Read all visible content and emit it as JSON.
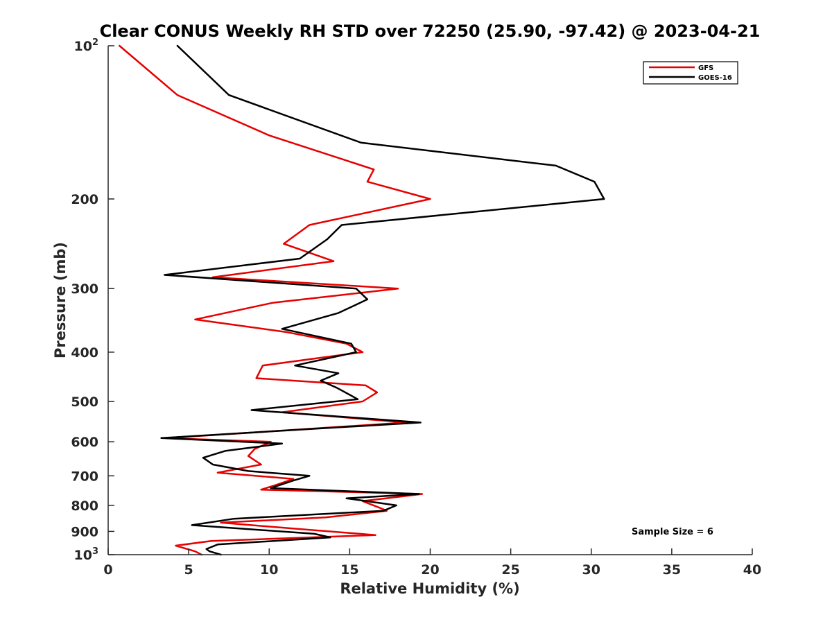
{
  "chart_data": {
    "type": "line",
    "title": "Clear CONUS Weekly RH STD over 72250 (25.90, -97.42) @ 2023-04-21",
    "xlabel": "Relative Humidity (%)",
    "ylabel": "Pressure (mb)",
    "xlim": [
      0,
      40
    ],
    "ylim": [
      100,
      1000
    ],
    "y_scale": "log",
    "y_reversed": true,
    "grid": false,
    "legend_position": "top-right",
    "x_ticks": [
      "0",
      "5",
      "10",
      "15",
      "20",
      "25",
      "30",
      "35",
      "40"
    ],
    "y_ticks": [
      {
        "value": 100,
        "base": "10",
        "exp": "2"
      },
      {
        "value": 200,
        "label": "200"
      },
      {
        "value": 300,
        "label": "300"
      },
      {
        "value": 400,
        "label": "400"
      },
      {
        "value": 500,
        "label": "500"
      },
      {
        "value": 600,
        "label": "600"
      },
      {
        "value": 700,
        "label": "700"
      },
      {
        "value": 800,
        "label": "800"
      },
      {
        "value": 900,
        "label": "900"
      },
      {
        "value": 1000,
        "base": "10",
        "exp": "3"
      }
    ],
    "annotation": "Sample Size = 6",
    "series": [
      {
        "name": "GFS",
        "color": "#e60000",
        "points": [
          [
            0.7,
            100
          ],
          [
            4.3,
            125
          ],
          [
            10,
            150
          ],
          [
            16.5,
            175
          ],
          [
            16.1,
            185
          ],
          [
            20,
            200
          ],
          [
            12.5,
            225
          ],
          [
            10.9,
            245
          ],
          [
            14,
            265
          ],
          [
            6.5,
            285
          ],
          [
            18,
            300
          ],
          [
            10.2,
            320
          ],
          [
            5.4,
            345
          ],
          [
            11,
            365
          ],
          [
            14.8,
            385
          ],
          [
            15.8,
            400
          ],
          [
            9.6,
            425
          ],
          [
            9.2,
            450
          ],
          [
            16,
            465
          ],
          [
            16.7,
            480
          ],
          [
            15.8,
            500
          ],
          [
            10.8,
            525
          ],
          [
            18.5,
            550
          ],
          [
            11,
            570
          ],
          [
            3.6,
            590
          ],
          [
            10.1,
            600
          ],
          [
            9.1,
            620
          ],
          [
            8.7,
            640
          ],
          [
            9.5,
            665
          ],
          [
            6.8,
            690
          ],
          [
            11.5,
            710
          ],
          [
            10.4,
            730
          ],
          [
            9.5,
            745
          ],
          [
            19.5,
            760
          ],
          [
            15.8,
            785
          ],
          [
            16.7,
            805
          ],
          [
            17.3,
            820
          ],
          [
            13.5,
            845
          ],
          [
            7,
            865
          ],
          [
            11.8,
            890
          ],
          [
            16.6,
            915
          ],
          [
            6.4,
            940
          ],
          [
            4.2,
            960
          ],
          [
            5.4,
            985
          ],
          [
            5.8,
            1000
          ]
        ]
      },
      {
        "name": "GOES-16",
        "color": "#000000",
        "points": [
          [
            4.3,
            100
          ],
          [
            7.5,
            125
          ],
          [
            15.7,
            155
          ],
          [
            27.8,
            172
          ],
          [
            30.2,
            185
          ],
          [
            30.8,
            200
          ],
          [
            14.5,
            225
          ],
          [
            13.6,
            240
          ],
          [
            11.9,
            262
          ],
          [
            3.5,
            282
          ],
          [
            15.4,
            300
          ],
          [
            16.1,
            315
          ],
          [
            14.3,
            335
          ],
          [
            10.8,
            360
          ],
          [
            15.1,
            385
          ],
          [
            15.4,
            400
          ],
          [
            11.6,
            425
          ],
          [
            14.3,
            440
          ],
          [
            13.2,
            455
          ],
          [
            14.2,
            470
          ],
          [
            15.5,
            495
          ],
          [
            8.9,
            520
          ],
          [
            19.4,
            550
          ],
          [
            13.1,
            565
          ],
          [
            3.3,
            590
          ],
          [
            10.8,
            605
          ],
          [
            7.3,
            625
          ],
          [
            5.9,
            645
          ],
          [
            6.5,
            665
          ],
          [
            8.7,
            685
          ],
          [
            12.5,
            700
          ],
          [
            11.5,
            715
          ],
          [
            10.1,
            740
          ],
          [
            19.3,
            760
          ],
          [
            14.8,
            775
          ],
          [
            17.9,
            800
          ],
          [
            17.1,
            820
          ],
          [
            7.8,
            850
          ],
          [
            5.2,
            875
          ],
          [
            12.8,
            910
          ],
          [
            13.8,
            925
          ],
          [
            6.8,
            955
          ],
          [
            6.1,
            975
          ],
          [
            6.3,
            985
          ],
          [
            7,
            1000
          ]
        ]
      }
    ]
  }
}
